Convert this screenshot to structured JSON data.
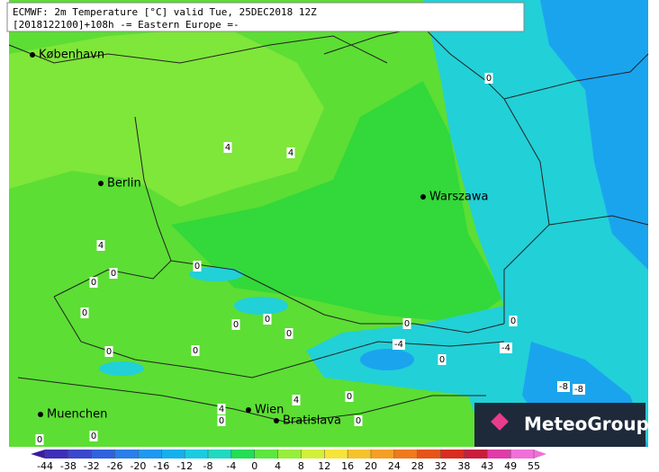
{
  "header": {
    "line1": "ECMWF: 2m Temperature [°C] valid Tue, 25DEC2018 12Z",
    "line2": "[2018122100]+108h  -= Eastern Europe =-"
  },
  "cities": [
    "København",
    "Berlin",
    "Warszawa",
    "Muenchen",
    "Wien",
    "Bratislava"
  ],
  "contour_labels": [
    "0",
    "4",
    "4",
    "4",
    "0",
    "0",
    "0",
    "0",
    "0",
    "0",
    "0",
    "0",
    "0",
    "0",
    "0",
    "-4",
    "0",
    "-4",
    "-8",
    "-8",
    "0",
    "4",
    "4",
    "0",
    "0",
    "0",
    "0"
  ],
  "colorbar": {
    "ticks": [
      -44,
      -38,
      -32,
      -26,
      -20,
      -16,
      -12,
      -8,
      -4,
      0,
      4,
      8,
      12,
      16,
      20,
      24,
      28,
      32,
      38,
      43,
      49,
      55
    ],
    "colors": [
      "#3a1c9e",
      "#3f2fb8",
      "#3a48cc",
      "#2f62dc",
      "#2a7fe8",
      "#1e98f0",
      "#14b0ee",
      "#1ccbe0",
      "#1fd9c0",
      "#22dd55",
      "#5ce640",
      "#96ee3a",
      "#d2f03a",
      "#f5e43a",
      "#f6c22c",
      "#f4a024",
      "#ef7a1c",
      "#e65418",
      "#d82e20",
      "#c81e3c",
      "#e03ca8",
      "#f070d8"
    ]
  },
  "logo": "MeteoGroup"
}
